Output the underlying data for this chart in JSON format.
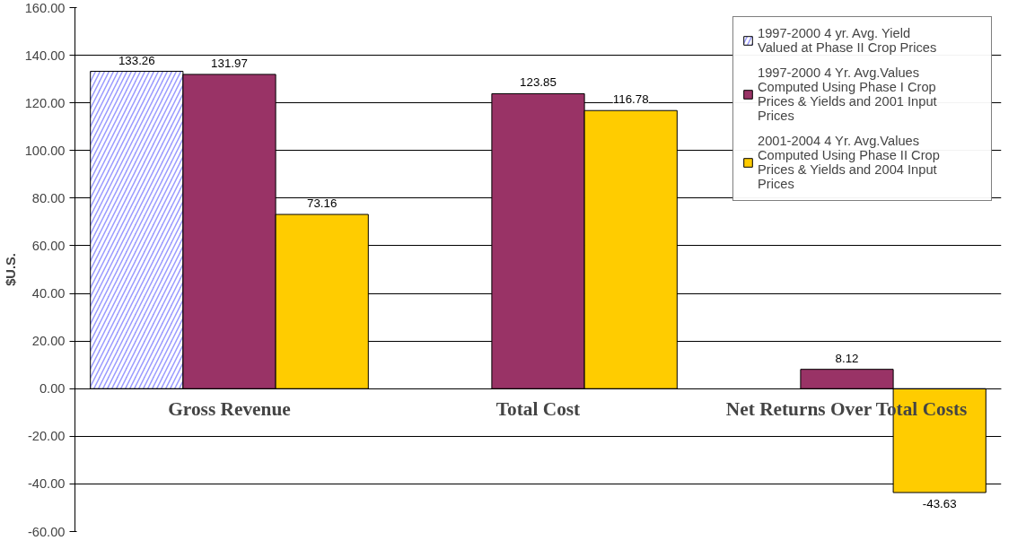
{
  "chart_data": {
    "type": "bar",
    "ylabel": "$U.S.",
    "categories": [
      "Gross Revenue",
      "Total Cost",
      "Net Returns Over Total Costs"
    ],
    "series": [
      {
        "name": "1997-2000 4 yr. Avg. Yield Valued at Phase II Crop Prices",
        "color": "#9999ff",
        "values": [
          133.26,
          null,
          null
        ]
      },
      {
        "name": "1997-2000 4 Yr. Avg.Values Computed Using Phase I Crop Prices & Yields and 2001 Input Prices",
        "color": "#993366",
        "values": [
          131.97,
          123.85,
          8.12
        ]
      },
      {
        "name": "2001-2004 4 Yr. Avg.Values Computed Using Phase II Crop Prices & Yields and 2004 Input Prices",
        "color": "#ffcc00",
        "values": [
          73.16,
          116.78,
          -43.63
        ]
      }
    ],
    "ylim": [
      -60,
      160
    ],
    "yticks": [
      {
        "value": -60,
        "label": "-60.00"
      },
      {
        "value": -40,
        "label": "-40.00"
      },
      {
        "value": -20,
        "label": "-20.00"
      },
      {
        "value": 0,
        "label": "0.00"
      },
      {
        "value": 20,
        "label": "20.00"
      },
      {
        "value": 40,
        "label": "40.00"
      },
      {
        "value": 60,
        "label": "60.00"
      },
      {
        "value": 80,
        "label": "80.00"
      },
      {
        "value": 100,
        "label": "100.00"
      },
      {
        "value": 120,
        "label": "120.00"
      },
      {
        "value": 140,
        "label": "140.00"
      },
      {
        "value": 160,
        "label": "160.00"
      }
    ],
    "grid": "y",
    "legend": "top right",
    "data_labels": true
  }
}
